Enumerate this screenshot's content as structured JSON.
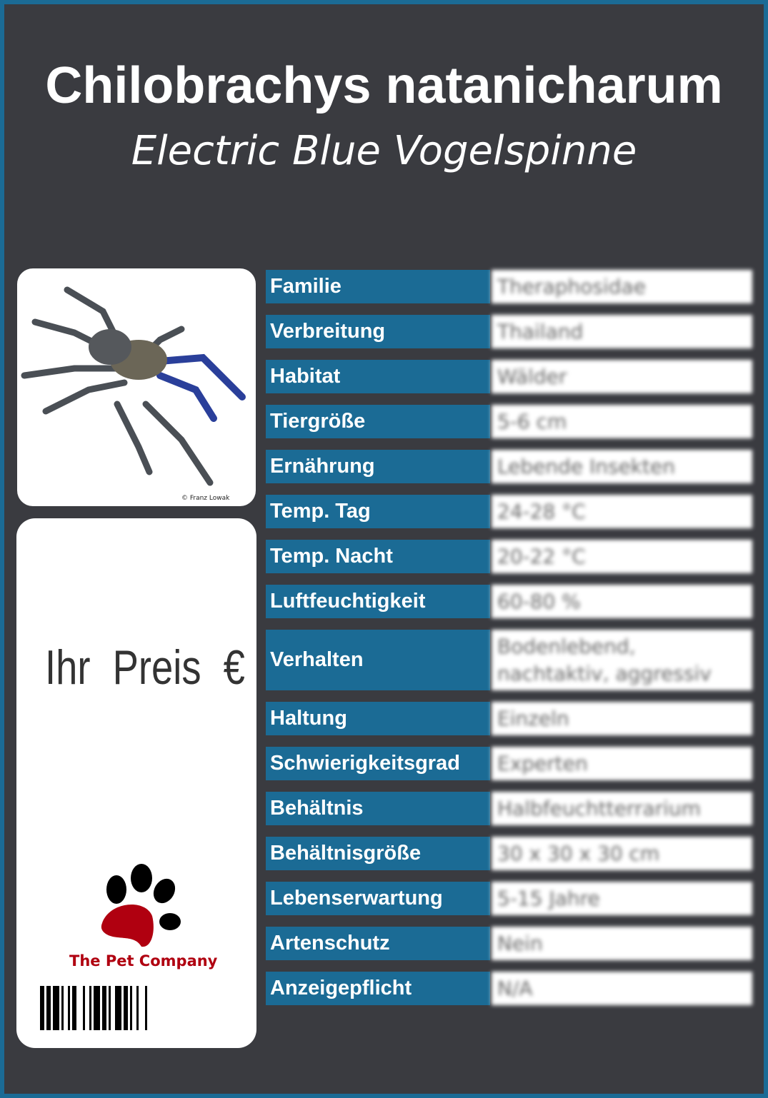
{
  "title": "Chilobrachys natanicharum",
  "subtitle": "Electric Blue Vogelspinne",
  "photo": {
    "credit": "© Franz Lowak"
  },
  "price": {
    "label": "Ihr Preis €"
  },
  "brand": {
    "name": "The Pet Company",
    "colors": {
      "paw_main": "#b00010",
      "paw_toes": "#000000"
    }
  },
  "colors": {
    "border": "#1b6b95",
    "background": "#3a3b40",
    "label_bg": "#1b6b95"
  },
  "rows": [
    {
      "label": "Familie",
      "value": "Theraphosidae"
    },
    {
      "label": "Verbreitung",
      "value": "Thailand"
    },
    {
      "label": "Habitat",
      "value": "Wälder"
    },
    {
      "label": "Tiergröße",
      "value": "5-6 cm"
    },
    {
      "label": "Ernährung",
      "value": "Lebende Insekten"
    },
    {
      "label": "Temp. Tag",
      "value": "24-28 °C"
    },
    {
      "label": "Temp. Nacht",
      "value": "20-22 °C"
    },
    {
      "label": "Luftfeuchtigkeit",
      "value": "60-80 %"
    },
    {
      "label": "Verhalten",
      "value": "Bodenlebend, nachtaktiv, aggressiv"
    },
    {
      "label": "Haltung",
      "value": "Einzeln"
    },
    {
      "label": "Schwierigkeitsgrad",
      "value": "Experten"
    },
    {
      "label": "Behältnis",
      "value": "Halbfeuchtterrarium"
    },
    {
      "label": "Behältnisgröße",
      "value": "30 x 30 x 30 cm"
    },
    {
      "label": "Lebenserwartung",
      "value": "5-15 Jahre"
    },
    {
      "label": "Artenschutz",
      "value": "Nein"
    },
    {
      "label": "Anzeigepflicht",
      "value": "N/A"
    }
  ]
}
